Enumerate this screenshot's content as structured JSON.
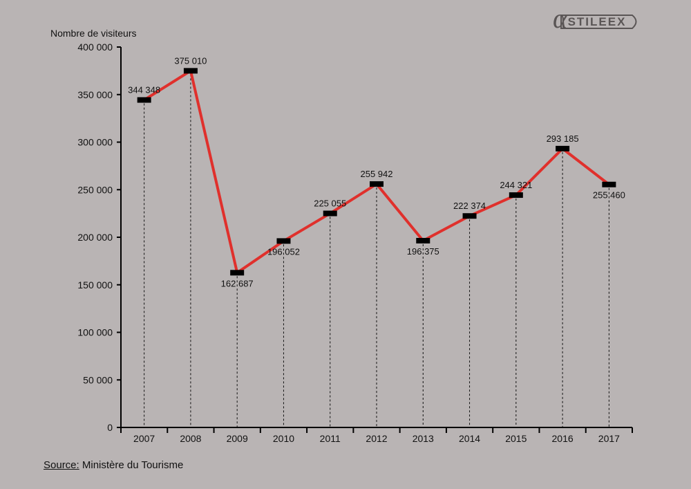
{
  "chart_data": {
    "type": "line",
    "ylabel": "Nombre de visiteurs",
    "categories": [
      "2007",
      "2008",
      "2009",
      "2010",
      "2011",
      "2012",
      "2013",
      "2014",
      "2015",
      "2016",
      "2017"
    ],
    "series": [
      {
        "values": [
          344348,
          375010,
          162687,
          196052,
          225055,
          255942,
          196375,
          222374,
          244321,
          293185,
          255460
        ]
      }
    ],
    "data_labels": [
      "344 348",
      "375 010",
      "162 687",
      "196 052",
      "225 055",
      "255 942",
      "196 375",
      "222 374",
      "244 321",
      "293 185",
      "255 460"
    ],
    "label_positions": [
      "above",
      "above",
      "below",
      "below",
      "above",
      "above",
      "below",
      "above",
      "above",
      "above",
      "below"
    ],
    "yticks": [
      0,
      50000,
      100000,
      150000,
      200000,
      250000,
      300000,
      350000,
      400000
    ],
    "ytick_labels": [
      "0",
      "50 000",
      "100 000",
      "150 000",
      "200 000",
      "250 000",
      "300 000",
      "350 000",
      "400 000"
    ],
    "ylim": [
      0,
      400000
    ],
    "grid": false,
    "drop_lines": true,
    "line_color": "#e0302c",
    "marker_color": "#000000"
  },
  "logo": {
    "text": "STILEEX",
    "color": "#5a5555"
  },
  "source": {
    "label": "Source:",
    "text": " Ministère du Tourisme"
  }
}
